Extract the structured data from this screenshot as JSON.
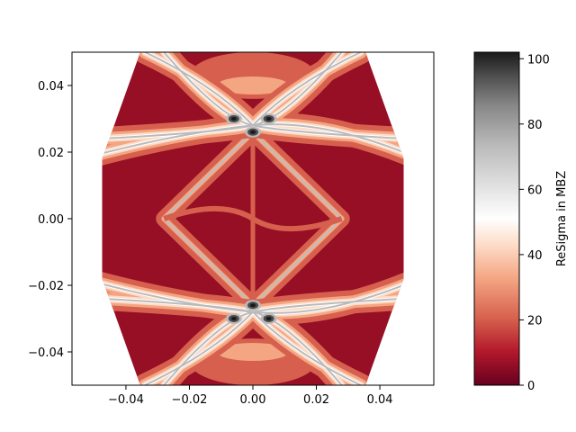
{
  "chart_data": {
    "type": "heatmap",
    "title": "",
    "xlabel": "",
    "ylabel": "",
    "xlim": [
      -0.057,
      0.057
    ],
    "ylim": [
      -0.05,
      0.05
    ],
    "x_ticks": [
      -0.04,
      -0.02,
      0.0,
      0.02,
      0.04
    ],
    "x_tick_labels": [
      "−0.04",
      "−0.02",
      "0.00",
      "0.02",
      "0.04"
    ],
    "y_ticks": [
      -0.04,
      -0.02,
      0.0,
      0.02,
      0.04
    ],
    "y_tick_labels": [
      "−0.04",
      "−0.02",
      "0.00",
      "0.02",
      "0.04"
    ],
    "colorbar": {
      "label": "ReSigma in MBZ",
      "range": [
        0,
        102
      ],
      "ticks": [
        0,
        20,
        40,
        60,
        80,
        100
      ],
      "tick_labels": [
        "0",
        "20",
        "40",
        "60",
        "80",
        "100"
      ],
      "colormap": "RdGy"
    },
    "region": {
      "shape": "hexagon",
      "vertices": [
        [
          -0.0355,
          0.05
        ],
        [
          0.0355,
          0.05
        ],
        [
          0.0475,
          0.018
        ],
        [
          0.0475,
          -0.018
        ],
        [
          0.0355,
          -0.05
        ],
        [
          -0.0355,
          -0.05
        ],
        [
          -0.0475,
          -0.018
        ],
        [
          -0.0475,
          0.018
        ]
      ]
    },
    "features": {
      "background_level": 8,
      "diamond_vertices": [
        [
          0.0,
          0.026
        ],
        [
          0.028,
          0.0
        ],
        [
          0.0,
          -0.026
        ],
        [
          -0.028,
          0.0
        ]
      ],
      "ridge_level": 55,
      "crossing_points": [
        [
          0.0,
          0.028
        ],
        [
          0.0,
          -0.028
        ]
      ],
      "hotspot_peaks": [
        {
          "x": -0.006,
          "y": 0.03,
          "value": 100
        },
        {
          "x": 0.005,
          "y": 0.03,
          "value": 95
        },
        {
          "x": 0.0,
          "y": 0.026,
          "value": 98
        },
        {
          "x": -0.006,
          "y": -0.03,
          "value": 100
        },
        {
          "x": 0.005,
          "y": -0.03,
          "value": 95
        },
        {
          "x": 0.0,
          "y": -0.026,
          "value": 98
        }
      ]
    },
    "colors": {
      "background": "#960f25",
      "band_low": "#d6604d",
      "band_mid": "#f4a582",
      "band_light": "#fddbc7",
      "white": "#ffffff",
      "grey_light": "#bababa",
      "grey_dark": "#4d4d4d",
      "black": "#1a1a1a"
    }
  }
}
